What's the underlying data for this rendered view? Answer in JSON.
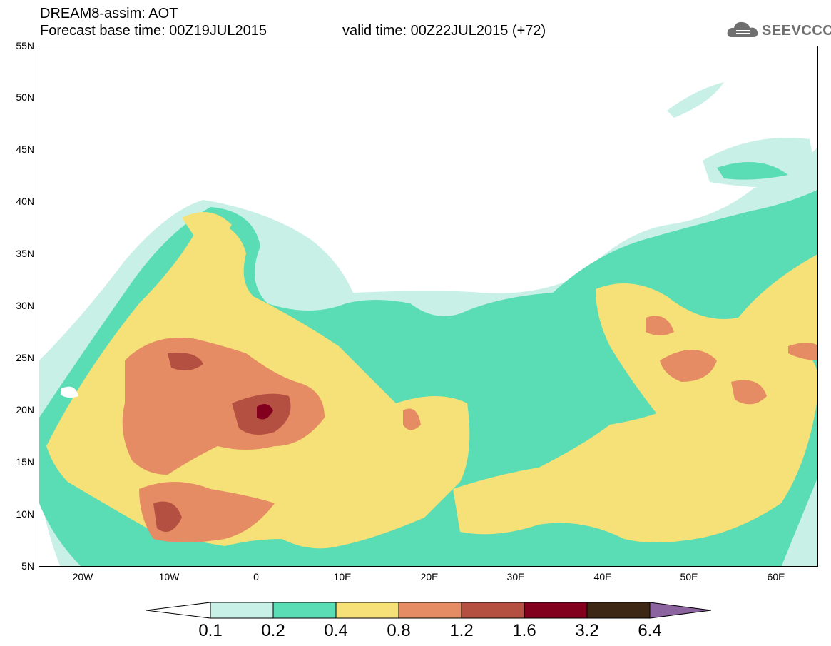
{
  "header": {
    "title": "DREAM8-assim: AOT",
    "base_time": "Forecast base time: 00Z19JUL2015",
    "valid_time": "valid time: 00Z22JUL2015 (+72)",
    "logo_text": "SEEVCCC"
  },
  "map": {
    "lat_labels": [
      "55N",
      "50N",
      "45N",
      "40N",
      "35N",
      "30N",
      "25N",
      "20N",
      "15N",
      "10N",
      "5N"
    ],
    "lon_labels": [
      "20W",
      "10W",
      "0",
      "10E",
      "20E",
      "30E",
      "40E",
      "50E",
      "60E"
    ],
    "lat_range": [
      5,
      55
    ],
    "lon_range": [
      -25,
      65
    ]
  },
  "legend": {
    "labels": [
      "0.1",
      "0.2",
      "0.4",
      "0.8",
      "1.2",
      "1.6",
      "3.2",
      "6.4"
    ],
    "colors": {
      "c0": "#c8f0e6",
      "c1": "#5adcb4",
      "c2": "#f5e178",
      "c3": "#e68c64",
      "c4": "#b45041",
      "c5": "#82001e",
      "c6": "#3c2814",
      "c7": "#8c64a0"
    }
  }
}
